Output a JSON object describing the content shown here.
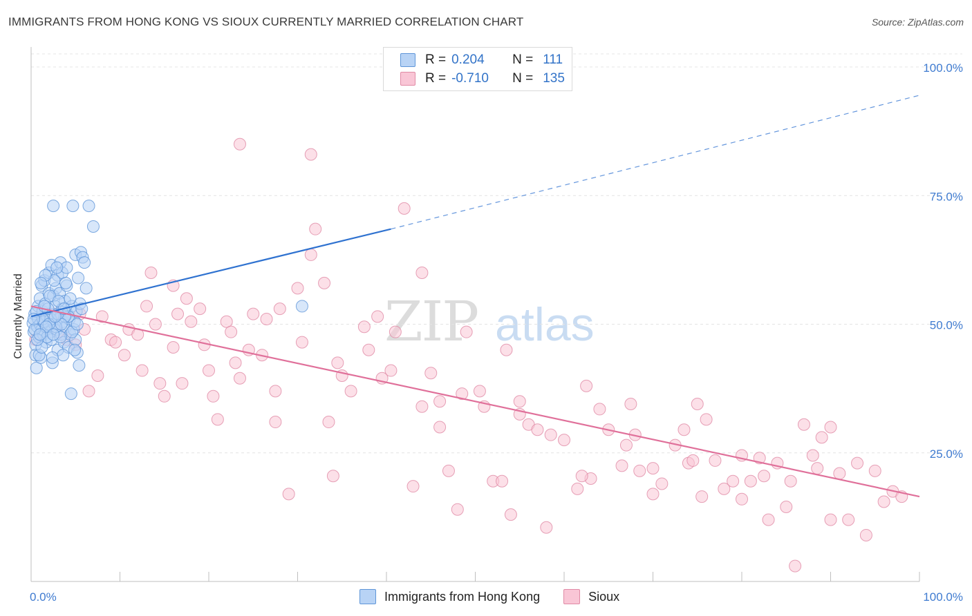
{
  "title": "IMMIGRANTS FROM HONG KONG VS SIOUX CURRENTLY MARRIED CORRELATION CHART",
  "source": "Source: ZipAtlas.com",
  "watermark": {
    "part1": "ZIP",
    "part2": "atlas"
  },
  "legend": {
    "r_label": "R =",
    "n_label": "N =",
    "rows": [
      {
        "r": "0.204",
        "n": "111",
        "fill": "#b8d3f5",
        "stroke": "#5e95d8"
      },
      {
        "r": "-0.710",
        "n": "135",
        "fill": "#f9c6d6",
        "stroke": "#e08aa5"
      }
    ]
  },
  "bottom_legend": [
    {
      "label": "Immigrants from Hong Kong",
      "fill": "#b8d3f5",
      "stroke": "#5e95d8"
    },
    {
      "label": "Sioux",
      "fill": "#f9c6d6",
      "stroke": "#e08aa5"
    }
  ],
  "chart_data": {
    "type": "scatter",
    "title": "IMMIGRANTS FROM HONG KONG VS SIOUX CURRENTLY MARRIED CORRELATION CHART",
    "xlabel": "",
    "ylabel": "Currently Married",
    "xlim": [
      0,
      100
    ],
    "ylim": [
      0,
      100
    ],
    "x_tick_labels": {
      "left": "0.0%",
      "right": "100.0%"
    },
    "y_ticks": [
      {
        "value": 25,
        "label": "25.0%"
      },
      {
        "value": 50,
        "label": "50.0%"
      },
      {
        "value": 75,
        "label": "75.0%"
      },
      {
        "value": 100,
        "label": "100.0%"
      }
    ],
    "grid": true,
    "legend_position": "top-center",
    "series": [
      {
        "name": "Immigrants from Hong Kong",
        "color": "#5e95d8",
        "fill": "#b8d3f5",
        "trend": {
          "x0": 0,
          "y0": 51.5,
          "x1": 40.5,
          "y1": 68.5,
          "dashed_to_x": 100,
          "dashed_to_y": 94.5,
          "color": "#2f72d0"
        },
        "points": [
          [
            0.2,
            50.2
          ],
          [
            0.3,
            48.5
          ],
          [
            0.4,
            52.0
          ],
          [
            0.5,
            46.0
          ],
          [
            0.5,
            44.0
          ],
          [
            0.6,
            41.5
          ],
          [
            0.7,
            49.5
          ],
          [
            0.8,
            51.0
          ],
          [
            0.8,
            53.5
          ],
          [
            0.9,
            47.5
          ],
          [
            1.0,
            50.0
          ],
          [
            1.0,
            55.0
          ],
          [
            1.1,
            43.5
          ],
          [
            1.2,
            49.0
          ],
          [
            1.2,
            57.5
          ],
          [
            1.3,
            52.5
          ],
          [
            1.4,
            48.0
          ],
          [
            1.5,
            50.5
          ],
          [
            1.5,
            58.5
          ],
          [
            1.6,
            54.0
          ],
          [
            1.7,
            46.5
          ],
          [
            1.8,
            51.5
          ],
          [
            1.9,
            49.5
          ],
          [
            2.0,
            60.0
          ],
          [
            2.0,
            56.0
          ],
          [
            2.1,
            52.0
          ],
          [
            2.2,
            48.5
          ],
          [
            2.3,
            61.5
          ],
          [
            2.3,
            47.0
          ],
          [
            2.4,
            42.5
          ],
          [
            2.5,
            73.0
          ],
          [
            2.5,
            55.5
          ],
          [
            2.6,
            50.0
          ],
          [
            2.7,
            53.5
          ],
          [
            2.8,
            57.0
          ],
          [
            2.9,
            49.0
          ],
          [
            3.0,
            59.5
          ],
          [
            3.0,
            45.0
          ],
          [
            3.1,
            51.0
          ],
          [
            3.2,
            56.0
          ],
          [
            3.3,
            62.0
          ],
          [
            3.4,
            48.0
          ],
          [
            3.5,
            53.0
          ],
          [
            3.5,
            60.0
          ],
          [
            3.6,
            50.5
          ],
          [
            3.7,
            46.5
          ],
          [
            3.8,
            54.5
          ],
          [
            3.9,
            49.5
          ],
          [
            4.0,
            61.0
          ],
          [
            4.0,
            57.5
          ],
          [
            4.1,
            52.0
          ],
          [
            4.2,
            45.5
          ],
          [
            4.3,
            51.0
          ],
          [
            4.4,
            48.0
          ],
          [
            4.5,
            36.5
          ],
          [
            4.6,
            53.5
          ],
          [
            4.7,
            73.0
          ],
          [
            4.8,
            49.0
          ],
          [
            4.9,
            50.5
          ],
          [
            5.0,
            47.0
          ],
          [
            5.0,
            63.5
          ],
          [
            5.1,
            52.5
          ],
          [
            5.2,
            44.5
          ],
          [
            5.3,
            59.0
          ],
          [
            5.4,
            42.0
          ],
          [
            5.5,
            54.0
          ],
          [
            5.6,
            64.0
          ],
          [
            5.7,
            53.0
          ],
          [
            5.8,
            63.0
          ],
          [
            6.0,
            62.0
          ],
          [
            6.2,
            57.0
          ],
          [
            6.5,
            73.0
          ],
          [
            7.0,
            69.0
          ],
          [
            1.4,
            50.5
          ],
          [
            1.8,
            47.5
          ],
          [
            2.1,
            55.5
          ],
          [
            2.6,
            58.5
          ],
          [
            3.3,
            47.5
          ],
          [
            3.6,
            44.0
          ],
          [
            4.2,
            51.5
          ],
          [
            0.6,
            52.5
          ],
          [
            0.9,
            44.0
          ],
          [
            1.2,
            45.5
          ],
          [
            1.6,
            59.5
          ],
          [
            2.8,
            49.5
          ],
          [
            3.1,
            54.5
          ],
          [
            3.8,
            51.5
          ],
          [
            4.4,
            55.0
          ],
          [
            2.2,
            51.0
          ],
          [
            1.9,
            53.0
          ],
          [
            0.4,
            49.0
          ],
          [
            0.7,
            47.0
          ],
          [
            1.1,
            58.0
          ],
          [
            1.3,
            51.0
          ],
          [
            2.4,
            43.5
          ],
          [
            2.9,
            61.0
          ],
          [
            3.4,
            50.0
          ],
          [
            4.6,
            48.5
          ],
          [
            5.2,
            50.0
          ],
          [
            4.9,
            45.0
          ],
          [
            3.0,
            52.0
          ],
          [
            2.0,
            50.0
          ],
          [
            1.7,
            49.5
          ],
          [
            1.0,
            48.0
          ],
          [
            2.7,
            51.5
          ],
          [
            3.7,
            53.0
          ],
          [
            0.3,
            51.0
          ],
          [
            1.5,
            53.5
          ],
          [
            2.5,
            48.0
          ],
          [
            30.5,
            53.5
          ],
          [
            3.9,
            58.0
          ]
        ]
      },
      {
        "name": "Sioux",
        "color": "#e08aa5",
        "fill": "#f9c6d6",
        "trend": {
          "x0": 0,
          "y0": 53.5,
          "x1": 100,
          "y1": 16.5,
          "color": "#e0709a"
        },
        "points": [
          [
            0.5,
            47.0
          ],
          [
            1.5,
            50.5
          ],
          [
            2.5,
            52.0
          ],
          [
            3.0,
            48.5
          ],
          [
            4.0,
            47.0
          ],
          [
            5.0,
            46.0
          ],
          [
            5.5,
            52.0
          ],
          [
            6.0,
            49.0
          ],
          [
            6.5,
            37.0
          ],
          [
            7.5,
            40.0
          ],
          [
            8.0,
            51.5
          ],
          [
            9.0,
            47.0
          ],
          [
            9.5,
            46.5
          ],
          [
            10.5,
            44.0
          ],
          [
            11.0,
            49.0
          ],
          [
            12.0,
            48.0
          ],
          [
            12.5,
            41.0
          ],
          [
            13.0,
            53.5
          ],
          [
            14.0,
            50.0
          ],
          [
            14.5,
            38.5
          ],
          [
            15.0,
            36.0
          ],
          [
            16.0,
            57.5
          ],
          [
            16.5,
            52.0
          ],
          [
            17.0,
            38.5
          ],
          [
            18.0,
            50.5
          ],
          [
            19.0,
            53.0
          ],
          [
            19.5,
            46.0
          ],
          [
            20.5,
            36.0
          ],
          [
            21.0,
            31.5
          ],
          [
            22.0,
            50.5
          ],
          [
            23.0,
            42.5
          ],
          [
            23.5,
            39.5
          ],
          [
            24.5,
            45.0
          ],
          [
            25.0,
            52.0
          ],
          [
            26.0,
            44.0
          ],
          [
            27.5,
            31.0
          ],
          [
            28.0,
            53.0
          ],
          [
            29.0,
            17.0
          ],
          [
            30.0,
            57.0
          ],
          [
            30.5,
            46.5
          ],
          [
            31.5,
            63.5
          ],
          [
            32.0,
            68.5
          ],
          [
            33.0,
            58.0
          ],
          [
            33.5,
            31.0
          ],
          [
            34.0,
            20.5
          ],
          [
            35.0,
            40.0
          ],
          [
            36.0,
            37.0
          ],
          [
            37.5,
            49.5
          ],
          [
            38.0,
            45.0
          ],
          [
            39.5,
            39.5
          ],
          [
            40.5,
            41.0
          ],
          [
            41.0,
            48.5
          ],
          [
            42.0,
            72.5
          ],
          [
            43.0,
            18.5
          ],
          [
            44.0,
            34.0
          ],
          [
            45.0,
            40.5
          ],
          [
            46.0,
            30.0
          ],
          [
            47.0,
            21.5
          ],
          [
            48.0,
            14.0
          ],
          [
            48.5,
            36.5
          ],
          [
            49.0,
            48.5
          ],
          [
            50.5,
            37.0
          ],
          [
            51.0,
            34.0
          ],
          [
            52.0,
            19.5
          ],
          [
            53.0,
            19.5
          ],
          [
            54.0,
            13.0
          ],
          [
            55.0,
            35.0
          ],
          [
            56.0,
            30.5
          ],
          [
            57.0,
            29.5
          ],
          [
            58.0,
            10.5
          ],
          [
            60.0,
            27.5
          ],
          [
            61.5,
            18.0
          ],
          [
            62.5,
            38.0
          ],
          [
            63.0,
            20.0
          ],
          [
            65.0,
            29.5
          ],
          [
            66.5,
            22.5
          ],
          [
            67.5,
            34.5
          ],
          [
            68.0,
            28.5
          ],
          [
            70.0,
            17.0
          ],
          [
            71.0,
            19.0
          ],
          [
            72.5,
            26.5
          ],
          [
            73.5,
            29.5
          ],
          [
            74.0,
            23.0
          ],
          [
            75.0,
            34.5
          ],
          [
            76.0,
            31.5
          ],
          [
            77.0,
            23.5
          ],
          [
            78.0,
            18.0
          ],
          [
            79.0,
            19.5
          ],
          [
            80.0,
            16.0
          ],
          [
            81.0,
            19.5
          ],
          [
            82.0,
            24.0
          ],
          [
            83.0,
            12.0
          ],
          [
            84.0,
            23.0
          ],
          [
            85.0,
            14.5
          ],
          [
            86.0,
            3.0
          ],
          [
            87.0,
            30.5
          ],
          [
            88.0,
            24.5
          ],
          [
            88.5,
            22.0
          ],
          [
            89.0,
            28.0
          ],
          [
            90.0,
            30.0
          ],
          [
            91.0,
            21.0
          ],
          [
            92.0,
            12.0
          ],
          [
            93.0,
            23.0
          ],
          [
            94.0,
            9.0
          ],
          [
            95.0,
            21.5
          ],
          [
            96.0,
            15.5
          ],
          [
            97.0,
            17.5
          ],
          [
            98.0,
            16.5
          ],
          [
            23.5,
            85.0
          ],
          [
            31.5,
            83.0
          ],
          [
            44.0,
            60.0
          ],
          [
            55.0,
            32.5
          ],
          [
            62.0,
            20.5
          ],
          [
            68.5,
            21.5
          ],
          [
            74.5,
            23.5
          ],
          [
            80.0,
            24.5
          ],
          [
            85.5,
            19.5
          ],
          [
            90.0,
            12.0
          ],
          [
            67.0,
            26.5
          ],
          [
            53.5,
            45.0
          ],
          [
            16.0,
            45.5
          ],
          [
            20.0,
            41.0
          ],
          [
            27.5,
            37.0
          ],
          [
            39.0,
            51.5
          ],
          [
            46.0,
            35.0
          ],
          [
            58.5,
            28.5
          ],
          [
            64.0,
            33.5
          ],
          [
            70.0,
            22.0
          ],
          [
            75.5,
            16.5
          ],
          [
            82.5,
            20.5
          ],
          [
            13.5,
            60.0
          ],
          [
            17.5,
            55.0
          ],
          [
            22.5,
            48.5
          ],
          [
            26.5,
            51.0
          ],
          [
            34.5,
            42.5
          ]
        ]
      }
    ]
  }
}
